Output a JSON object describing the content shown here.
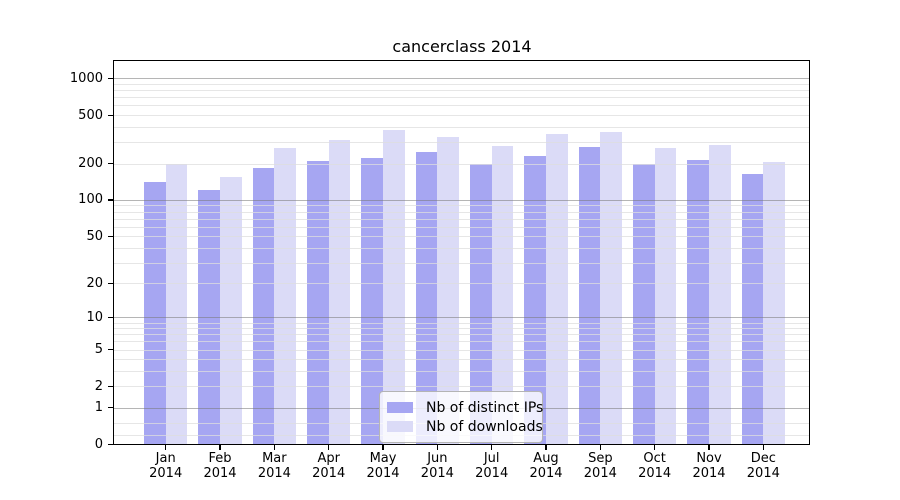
{
  "chart_data": {
    "type": "bar",
    "title": "cancerclass 2014",
    "categories": [
      "Jan",
      "Feb",
      "Mar",
      "Apr",
      "May",
      "Jun",
      "Jul",
      "Aug",
      "Sep",
      "Oct",
      "Nov",
      "Dec"
    ],
    "x_year_label": "2014",
    "series": [
      {
        "name": "Nb of distinct IPs",
        "color": "#a6a6f2",
        "values": [
          140,
          120,
          185,
          210,
          220,
          250,
          200,
          230,
          275,
          200,
          215,
          165
        ]
      },
      {
        "name": "Nb of downloads",
        "color": "#dbdbf7",
        "values": [
          200,
          155,
          270,
          315,
          380,
          330,
          280,
          350,
          365,
          270,
          285,
          205
        ]
      }
    ],
    "y_axis": {
      "scale": "log1p",
      "tick_values": [
        0,
        1,
        2,
        5,
        10,
        20,
        50,
        100,
        200,
        500,
        1000
      ],
      "tick_labels": [
        "0",
        "1",
        "2",
        "5",
        "10",
        "20",
        "50",
        "100",
        "200",
        "500",
        "1000"
      ],
      "ylim": [
        0,
        1430
      ]
    },
    "grid": {
      "enabled": true,
      "major": [
        1,
        10,
        100,
        1000
      ],
      "minor": [
        0.2,
        0.5,
        2,
        3,
        4,
        5,
        6,
        7,
        8,
        9,
        20,
        30,
        40,
        50,
        60,
        70,
        80,
        90,
        200,
        300,
        400,
        500,
        600,
        700,
        800,
        900
      ]
    },
    "legend": {
      "position": "lower-center",
      "entries": [
        "Nb of distinct IPs",
        "Nb of downloads"
      ]
    },
    "colors": {
      "background": "#ffffff",
      "axis": "#000000",
      "grid_major": "#b0b0b0",
      "grid_minor": "#ececec"
    }
  }
}
